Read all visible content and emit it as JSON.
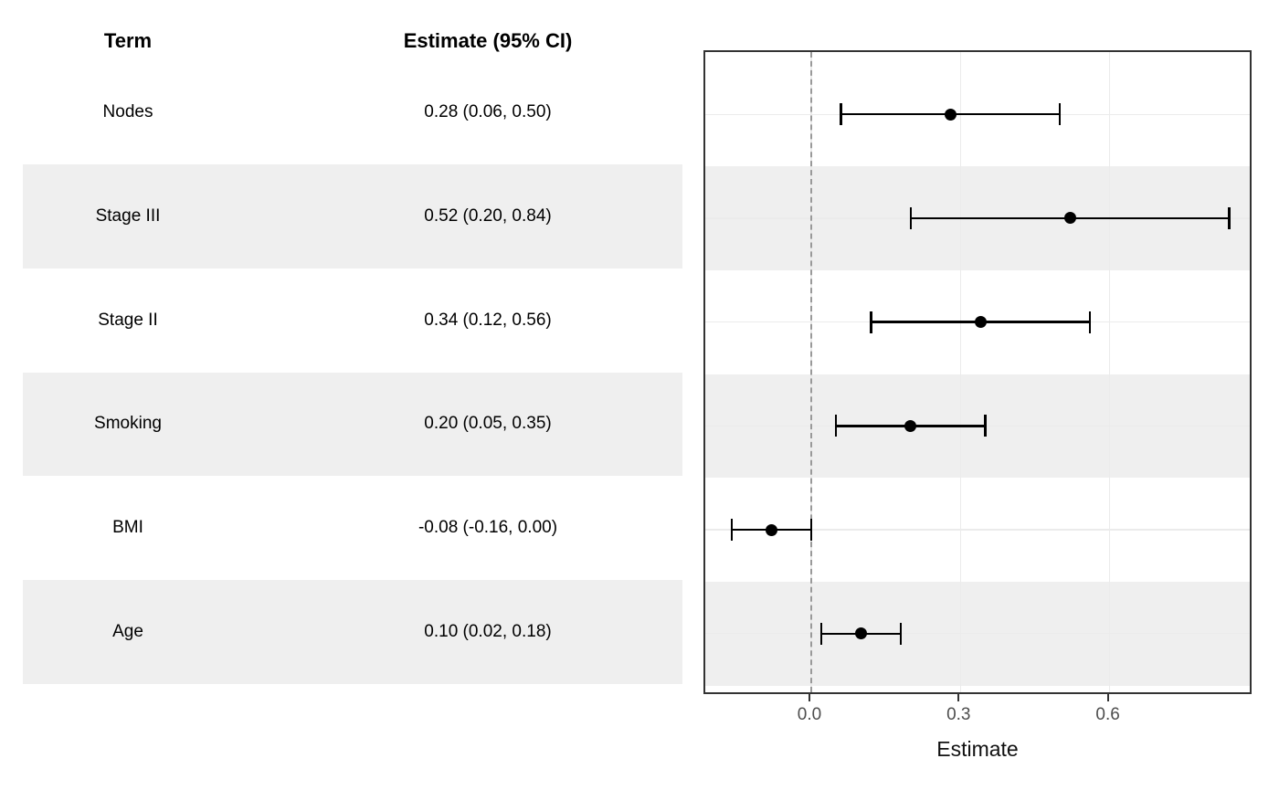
{
  "table": {
    "term_header": "Term",
    "estimate_header": "Estimate (95% CI)",
    "rows": [
      {
        "term": "Nodes",
        "estimate_label": "0.28 (0.06, 0.50)",
        "shaded": false
      },
      {
        "term": "Stage III",
        "estimate_label": "0.52 (0.20, 0.84)",
        "shaded": true
      },
      {
        "term": "Stage II",
        "estimate_label": "0.34 (0.12, 0.56)",
        "shaded": false
      },
      {
        "term": "Smoking",
        "estimate_label": "0.20 (0.05, 0.35)",
        "shaded": true
      },
      {
        "term": "BMI",
        "estimate_label": "-0.08 (-0.16, 0.00)",
        "shaded": false
      },
      {
        "term": "Age",
        "estimate_label": "0.10 (0.02, 0.18)",
        "shaded": true
      }
    ]
  },
  "chart_data": {
    "type": "scatter",
    "variant": "forest-plot-horizontal-errorbars",
    "title": "",
    "xlabel": "Estimate",
    "categories": [
      "Nodes",
      "Stage III",
      "Stage II",
      "Smoking",
      "BMI",
      "Age"
    ],
    "points": [
      {
        "term": "Nodes",
        "estimate": 0.28,
        "ci_low": 0.06,
        "ci_high": 0.5
      },
      {
        "term": "Stage III",
        "estimate": 0.52,
        "ci_low": 0.2,
        "ci_high": 0.84
      },
      {
        "term": "Stage II",
        "estimate": 0.34,
        "ci_low": 0.12,
        "ci_high": 0.56
      },
      {
        "term": "Smoking",
        "estimate": 0.2,
        "ci_low": 0.05,
        "ci_high": 0.35
      },
      {
        "term": "BMI",
        "estimate": -0.08,
        "ci_low": -0.16,
        "ci_high": 0.0
      },
      {
        "term": "Age",
        "estimate": 0.1,
        "ci_low": 0.02,
        "ci_high": 0.18
      }
    ],
    "x_ticks": [
      0.0,
      0.3,
      0.6
    ],
    "x_tick_labels": [
      "0.0",
      "0.3",
      "0.6"
    ],
    "xlim": [
      -0.213,
      0.889
    ],
    "reference_line_x": 0,
    "grid": "major-only",
    "legend": "none",
    "shaded_rows": [
      "Stage III",
      "Smoking",
      "Age"
    ]
  },
  "colors": {
    "stripe_band": "#efefef",
    "panel_border": "#333333",
    "gridline": "#ebebeb",
    "reference_line": "#999999",
    "estimate_marker": "#000000",
    "tick_label_text": "#4d4d4d",
    "tick_mark": "#333333",
    "table_text": "#000000"
  }
}
